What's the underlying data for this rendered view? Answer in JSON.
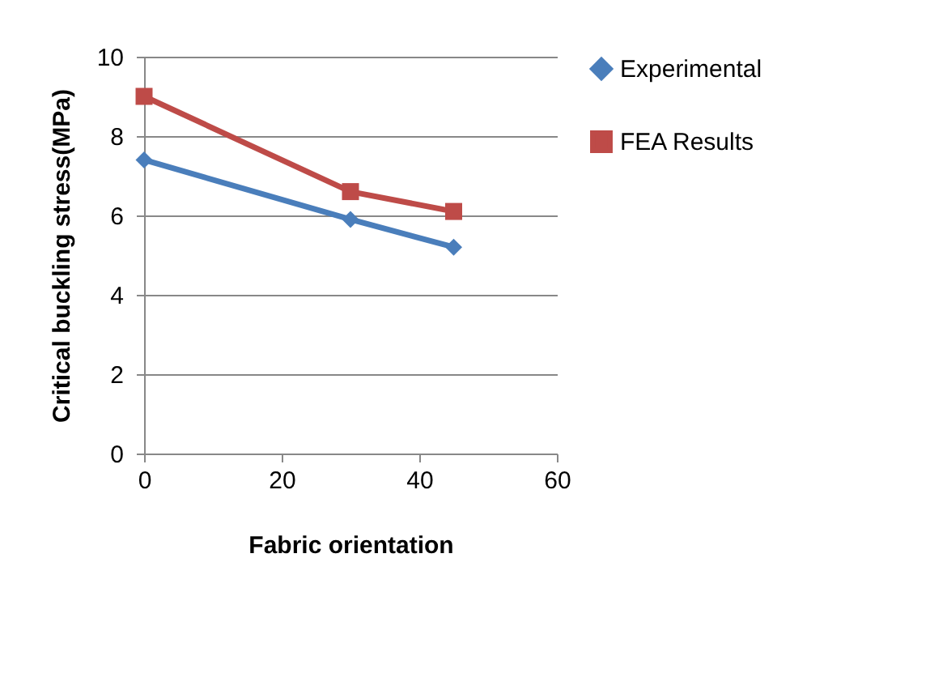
{
  "chart_data": {
    "type": "line",
    "xlabel": "Fabric orientation",
    "ylabel": "Critical buckling stress(MPa)",
    "x": [
      0,
      30,
      45
    ],
    "series": [
      {
        "name": "Experimental",
        "color": "#4a7ebb",
        "marker": "diamond",
        "values": [
          7.4,
          5.9,
          5.2
        ]
      },
      {
        "name": "FEA Results",
        "color": "#be4b48",
        "marker": "square",
        "values": [
          9.0,
          6.6,
          6.1
        ]
      }
    ],
    "xlim": [
      0,
      60
    ],
    "xticks": [
      0,
      20,
      40,
      60
    ],
    "ylim": [
      0,
      10
    ],
    "yticks": [
      0,
      2,
      4,
      6,
      8,
      10
    ],
    "grid": "y",
    "legend": "right",
    "line_style": "solid"
  }
}
